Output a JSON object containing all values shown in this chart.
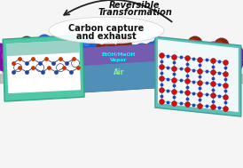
{
  "title_line1": "Reversible",
  "title_line2": "Transformation",
  "label_center_top": "EtOH/MeOH",
  "label_center_bot": "Vapor",
  "label_air": "Air",
  "label_bottom": "Carbon capture\nand exhaust",
  "bg_color": "#f5f5f5",
  "sphere_colors": {
    "yellow": "#c8a800",
    "purple": "#8010a0",
    "blue": "#1040c0",
    "red_brown": "#882010",
    "dark_red": "#601008",
    "blue2": "#2060d0"
  },
  "figsize": [
    2.74,
    1.89
  ],
  "dpi": 100
}
